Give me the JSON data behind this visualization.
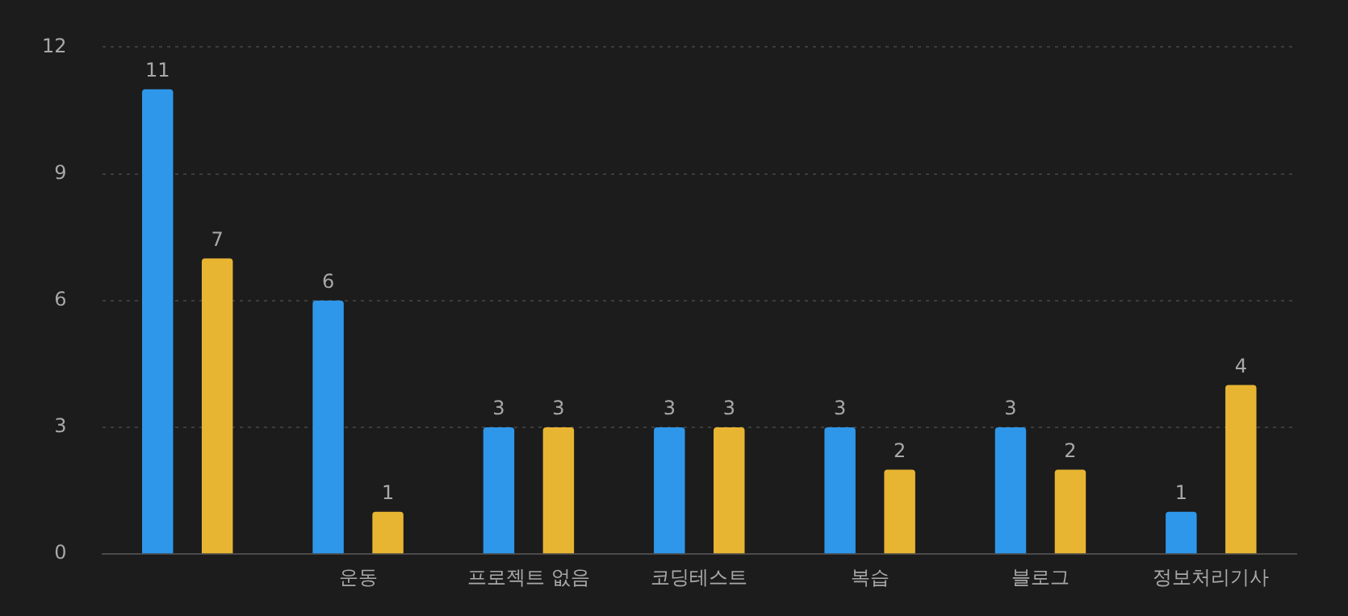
{
  "chart_data": {
    "type": "bar",
    "categories": [
      null,
      "운동",
      "프로젝트 없음",
      "코딩테스트",
      "복습",
      "블로그",
      "정보처리기사"
    ],
    "series": [
      {
        "color": "#2f97e9",
        "values": [
          11,
          6,
          3,
          3,
          3,
          3,
          1
        ]
      },
      {
        "color": "#e8b533",
        "values": [
          7,
          1,
          3,
          3,
          2,
          2,
          4
        ]
      }
    ],
    "ylim": [
      0,
      12
    ],
    "yticks": [
      0,
      3,
      6,
      9,
      12
    ],
    "grid": "y",
    "legend": false,
    "data_labels": true
  }
}
